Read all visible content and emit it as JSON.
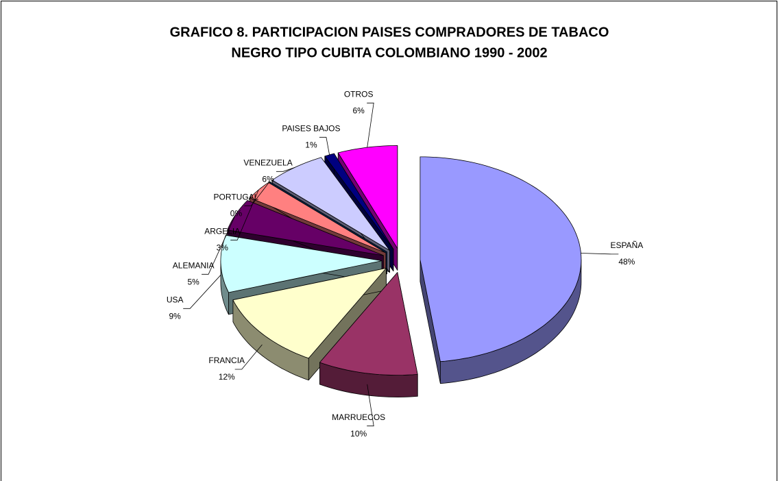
{
  "chart_data": {
    "type": "pie",
    "title": "GRAFICO 8.  PARTICIPACION PAISES COMPRADORES DE TABACO",
    "subtitle": "NEGRO TIPO CUBITA COLOMBIANO 1990 - 2002",
    "categories": [
      "ESPAÑA",
      "MARRUECOS",
      "FRANCIA",
      "USA",
      "ALEMANIA",
      "ARGELIA",
      "PORTUGAL",
      "VENEZUELA",
      "PAISES BAJOS",
      "OTROS"
    ],
    "values": [
      48,
      10,
      12,
      9,
      5,
      3,
      0,
      6,
      1,
      6
    ],
    "value_labels": [
      "48%",
      "10%",
      "12%",
      "9%",
      "5%",
      "3%",
      "0%",
      "6%",
      "1%",
      "6%"
    ],
    "colors": [
      "#9999ff",
      "#993366",
      "#ffffcc",
      "#ccffff",
      "#660066",
      "#ff8080",
      "#0066cc",
      "#ccccff",
      "#000080",
      "#ff00ff"
    ],
    "three_d": true,
    "exploded": true
  }
}
